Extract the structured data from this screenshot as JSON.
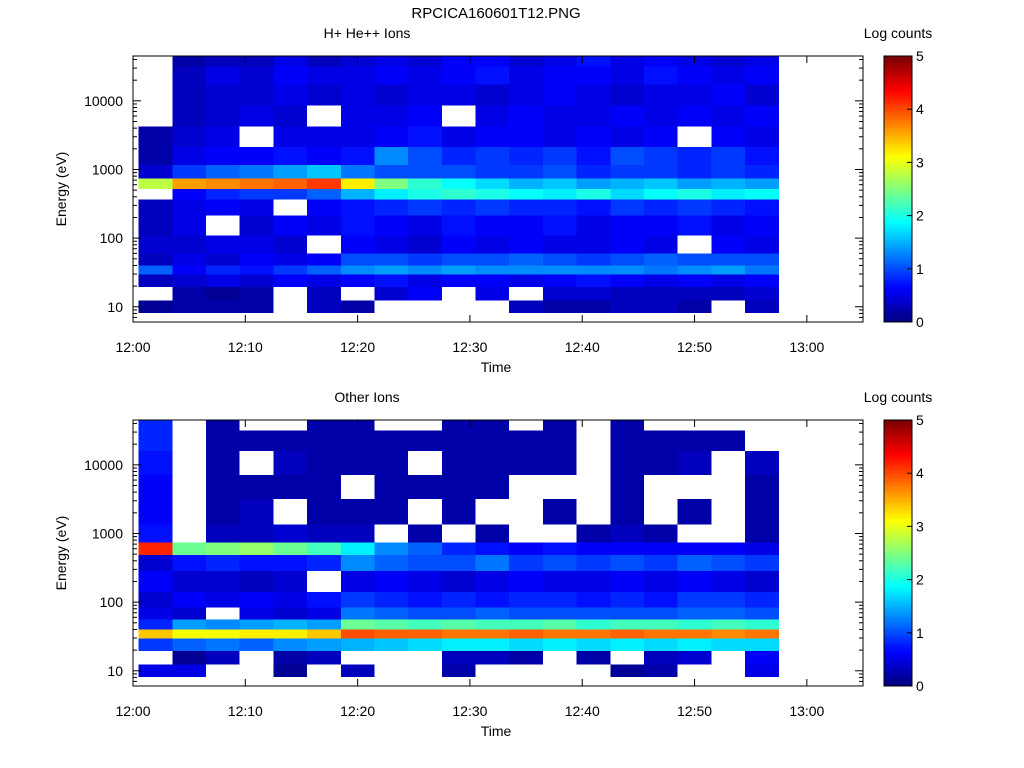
{
  "figure_title": "RPCICA160601T12.PNG",
  "chart_data": [
    {
      "type": "heatmap",
      "title": "H+ He++ Ions",
      "xlabel": "Time",
      "ylabel": "Energy (eV)",
      "xticks": [
        "12:00",
        "12:10",
        "12:20",
        "12:30",
        "12:40",
        "12:50",
        "13:00"
      ],
      "xlim": [
        "12:00",
        "13:05"
      ],
      "yscale": "log",
      "yticks": [
        "10",
        "100",
        "1000",
        "10000"
      ],
      "ylim": [
        6,
        45000
      ],
      "colorbar": {
        "label": "Log counts",
        "ticks": [
          "0",
          "1",
          "2",
          "3",
          "4",
          "5"
        ],
        "range": [
          0,
          5
        ],
        "colormap": "jet"
      },
      "time_columns": [
        "12:02",
        "12:05",
        "12:08",
        "12:11",
        "12:14",
        "12:17",
        "12:20",
        "12:23",
        "12:26",
        "12:29",
        "12:32",
        "12:35",
        "12:38",
        "12:41",
        "12:44",
        "12:47",
        "12:50",
        "12:53",
        "12:56"
      ],
      "energy_rows": [
        {
          "energy": 10,
          "values": [
            0.1,
            0.2,
            0.2,
            0.2,
            null,
            0.3,
            0.2,
            null,
            null,
            null,
            null,
            0.3,
            0.2,
            0.2,
            0.3,
            0.3,
            0.2,
            null,
            0.3
          ]
        },
        {
          "energy": 15,
          "values": [
            null,
            0.2,
            0.1,
            0.2,
            null,
            0.3,
            null,
            0.4,
            0.6,
            null,
            0.5,
            null,
            0.4,
            0.4,
            0.3,
            0.3,
            0.3,
            0.3,
            0.4
          ]
        },
        {
          "energy": 25,
          "values": [
            0.3,
            0.4,
            0.5,
            0.4,
            0.6,
            0.5,
            0.6,
            0.7,
            0.5,
            0.6,
            0.6,
            0.5,
            0.6,
            0.7,
            0.6,
            0.5,
            0.6,
            0.5,
            0.6
          ]
        },
        {
          "energy": 35,
          "values": [
            1.1,
            0.6,
            0.8,
            0.7,
            0.9,
            1.1,
            1.3,
            1.4,
            1.3,
            1.4,
            1.3,
            1.3,
            1.3,
            1.3,
            1.3,
            1.2,
            1.3,
            1.4,
            1.2
          ]
        },
        {
          "energy": 45,
          "values": [
            0.3,
            0.5,
            0.4,
            0.6,
            0.5,
            0.6,
            1.0,
            1.0,
            0.9,
            1.0,
            1.0,
            1.1,
            1.0,
            0.9,
            1.0,
            1.1,
            1.0,
            1.0,
            1.0
          ]
        },
        {
          "energy": 80,
          "values": [
            0.4,
            0.4,
            0.5,
            0.5,
            0.4,
            null,
            0.6,
            0.5,
            0.4,
            0.6,
            0.5,
            0.6,
            0.5,
            0.5,
            0.6,
            0.5,
            null,
            0.6,
            0.5
          ]
        },
        {
          "energy": 150,
          "values": [
            0.3,
            0.5,
            null,
            0.4,
            0.6,
            0.5,
            0.7,
            0.6,
            0.5,
            0.7,
            0.6,
            0.6,
            0.7,
            0.5,
            0.6,
            0.6,
            0.7,
            0.5,
            0.6
          ]
        },
        {
          "energy": 300,
          "values": [
            0.3,
            0.5,
            0.6,
            0.5,
            null,
            0.6,
            0.7,
            0.8,
            0.9,
            0.8,
            0.9,
            0.8,
            0.8,
            0.7,
            0.9,
            0.8,
            0.9,
            0.8,
            0.7
          ]
        },
        {
          "energy": 450,
          "values": [
            null,
            0.6,
            0.8,
            0.9,
            0.9,
            1.1,
            1.5,
            1.8,
            2.0,
            2.1,
            2.0,
            1.9,
            1.8,
            2.0,
            1.7,
            1.9,
            2.0,
            1.8,
            1.9
          ]
        },
        {
          "energy": 600,
          "values": [
            2.8,
            3.6,
            3.7,
            3.8,
            3.9,
            4.1,
            3.2,
            2.5,
            2.1,
            1.9,
            1.7,
            1.5,
            1.6,
            1.4,
            1.5,
            1.6,
            1.4,
            1.5,
            1.4
          ]
        },
        {
          "energy": 900,
          "values": [
            0.4,
            0.9,
            1.1,
            1.2,
            1.4,
            1.6,
            1.2,
            1.0,
            1.0,
            1.0,
            0.9,
            0.9,
            1.0,
            0.8,
            0.9,
            0.9,
            0.8,
            0.9,
            0.8
          ]
        },
        {
          "energy": 1500,
          "values": [
            0.2,
            0.5,
            0.6,
            0.6,
            0.7,
            0.6,
            0.7,
            1.3,
            1.0,
            0.8,
            0.9,
            0.8,
            0.9,
            0.7,
            1.0,
            0.9,
            0.8,
            0.9,
            0.7
          ]
        },
        {
          "energy": 3000,
          "values": [
            0.2,
            0.4,
            0.5,
            null,
            0.5,
            0.5,
            0.5,
            0.6,
            0.7,
            0.5,
            0.6,
            0.6,
            0.5,
            0.6,
            0.5,
            0.6,
            null,
            0.6,
            0.5
          ]
        },
        {
          "energy": 6000,
          "values": [
            null,
            0.3,
            0.4,
            0.5,
            0.4,
            null,
            0.5,
            0.5,
            0.6,
            null,
            0.5,
            0.6,
            0.5,
            0.5,
            0.6,
            0.5,
            0.6,
            0.5,
            0.6
          ]
        },
        {
          "energy": 12000,
          "values": [
            null,
            0.3,
            0.4,
            0.4,
            0.5,
            0.4,
            0.5,
            0.4,
            0.5,
            0.5,
            0.4,
            0.5,
            0.6,
            0.5,
            0.4,
            0.5,
            0.5,
            0.6,
            0.4
          ]
        },
        {
          "energy": 25000,
          "values": [
            null,
            0.3,
            0.5,
            0.4,
            0.6,
            0.5,
            0.5,
            0.6,
            0.5,
            0.6,
            0.7,
            0.5,
            0.6,
            0.6,
            0.5,
            0.7,
            0.6,
            0.5,
            0.6
          ]
        },
        {
          "energy": 40000,
          "values": [
            null,
            0.2,
            0.3,
            0.3,
            0.5,
            0.3,
            0.4,
            0.5,
            0.4,
            0.6,
            0.6,
            0.4,
            0.5,
            0.7,
            0.5,
            0.6,
            0.5,
            0.4,
            0.5
          ]
        }
      ]
    },
    {
      "type": "heatmap",
      "title": "Other Ions",
      "xlabel": "Time",
      "ylabel": "Energy (eV)",
      "xticks": [
        "12:00",
        "12:10",
        "12:20",
        "12:30",
        "12:40",
        "12:50",
        "13:00"
      ],
      "xlim": [
        "12:00",
        "13:05"
      ],
      "yscale": "log",
      "yticks": [
        "10",
        "100",
        "1000",
        "10000"
      ],
      "ylim": [
        6,
        45000
      ],
      "colorbar": {
        "label": "Log counts",
        "ticks": [
          "0",
          "1",
          "2",
          "3",
          "4",
          "5"
        ],
        "range": [
          0,
          5
        ],
        "colormap": "jet"
      },
      "time_columns": [
        "12:02",
        "12:05",
        "12:08",
        "12:11",
        "12:14",
        "12:17",
        "12:20",
        "12:23",
        "12:26",
        "12:29",
        "12:32",
        "12:35",
        "12:38",
        "12:41",
        "12:44",
        "12:47",
        "12:50",
        "12:53",
        "12:56"
      ],
      "energy_rows": [
        {
          "energy": 10,
          "values": [
            0.5,
            0.5,
            null,
            null,
            0.1,
            null,
            0.3,
            null,
            null,
            0.2,
            null,
            null,
            null,
            null,
            0.1,
            0.2,
            null,
            null,
            0.5
          ]
        },
        {
          "energy": 15,
          "values": [
            null,
            0.1,
            0.3,
            null,
            0.2,
            0.3,
            null,
            null,
            null,
            0.3,
            0.3,
            0.2,
            null,
            0.2,
            null,
            0.3,
            0.4,
            null,
            0.6
          ]
        },
        {
          "energy": 25,
          "values": [
            0.9,
            1.1,
            1.2,
            1.1,
            1.3,
            1.4,
            1.5,
            1.6,
            1.7,
            1.8,
            1.8,
            1.7,
            1.8,
            1.7,
            1.8,
            1.7,
            1.8,
            1.7,
            1.7
          ]
        },
        {
          "energy": 35,
          "values": [
            3.4,
            3.1,
            3.1,
            3.2,
            3.2,
            3.4,
            4.0,
            3.9,
            3.9,
            3.8,
            3.8,
            3.9,
            3.8,
            3.8,
            3.9,
            3.8,
            3.8,
            3.7,
            3.8
          ]
        },
        {
          "energy": 45,
          "values": [
            0.8,
            1.4,
            1.3,
            1.4,
            1.5,
            1.4,
            2.4,
            2.3,
            2.2,
            2.3,
            2.2,
            2.2,
            2.3,
            2.1,
            2.2,
            2.2,
            2.1,
            2.2,
            2.1
          ]
        },
        {
          "energy": 70,
          "values": [
            0.5,
            0.4,
            null,
            0.5,
            0.4,
            0.5,
            1.2,
            1.1,
            1.0,
            1.0,
            1.1,
            1.0,
            1.0,
            1.0,
            1.0,
            1.0,
            1.1,
            1.1,
            1.0
          ]
        },
        {
          "energy": 100,
          "values": [
            0.4,
            0.6,
            0.5,
            0.6,
            0.5,
            0.7,
            0.9,
            0.8,
            0.7,
            0.8,
            0.7,
            0.8,
            0.8,
            0.7,
            0.8,
            0.7,
            0.9,
            0.9,
            0.8
          ]
        },
        {
          "energy": 200,
          "values": [
            0.6,
            0.4,
            0.4,
            0.3,
            0.4,
            null,
            0.5,
            0.6,
            0.5,
            0.4,
            0.5,
            0.6,
            0.5,
            0.5,
            0.6,
            0.5,
            0.6,
            0.5,
            0.4
          ]
        },
        {
          "energy": 400,
          "values": [
            0.4,
            0.7,
            0.8,
            0.7,
            0.7,
            0.8,
            1.3,
            1.1,
            1.0,
            1.0,
            1.2,
            0.9,
            1.0,
            0.9,
            1.0,
            0.9,
            1.1,
            1.0,
            0.9
          ]
        },
        {
          "energy": 600,
          "values": [
            4.2,
            2.4,
            2.5,
            2.6,
            2.4,
            2.2,
            1.8,
            1.3,
            1.1,
            0.8,
            0.7,
            0.6,
            0.7,
            0.6,
            0.6,
            0.6,
            0.6,
            0.6,
            0.5
          ]
        },
        {
          "energy": 900,
          "values": [
            0.7,
            null,
            0.3,
            0.3,
            0.4,
            0.3,
            0.3,
            null,
            0.2,
            null,
            0.2,
            null,
            null,
            0.2,
            0.3,
            0.2,
            null,
            null,
            0.2
          ]
        },
        {
          "energy": 2000,
          "values": [
            0.6,
            null,
            0.2,
            0.3,
            null,
            0.2,
            0.2,
            0.2,
            null,
            0.2,
            null,
            null,
            0.2,
            null,
            0.2,
            null,
            0.2,
            null,
            0.2
          ]
        },
        {
          "energy": 5000,
          "values": [
            0.6,
            null,
            0.2,
            0.2,
            0.2,
            0.2,
            null,
            0.2,
            0.2,
            0.2,
            0.2,
            null,
            null,
            null,
            0.2,
            null,
            null,
            null,
            0.2
          ]
        },
        {
          "energy": 10000,
          "values": [
            0.7,
            null,
            0.2,
            null,
            0.3,
            0.2,
            0.2,
            0.2,
            null,
            0.2,
            0.2,
            0.2,
            0.2,
            null,
            0.2,
            0.2,
            0.3,
            null,
            0.3
          ]
        },
        {
          "energy": 25000,
          "values": [
            0.8,
            null,
            0.2,
            0.2,
            0.2,
            0.2,
            0.2,
            0.2,
            0.2,
            0.2,
            0.2,
            0.2,
            0.2,
            null,
            0.2,
            0.2,
            0.2,
            0.2,
            null
          ]
        },
        {
          "energy": 40000,
          "values": [
            0.8,
            null,
            0.2,
            null,
            null,
            0.2,
            0.2,
            null,
            null,
            0.2,
            0.2,
            null,
            0.2,
            null,
            0.2,
            null,
            null,
            null,
            null
          ]
        }
      ]
    }
  ]
}
